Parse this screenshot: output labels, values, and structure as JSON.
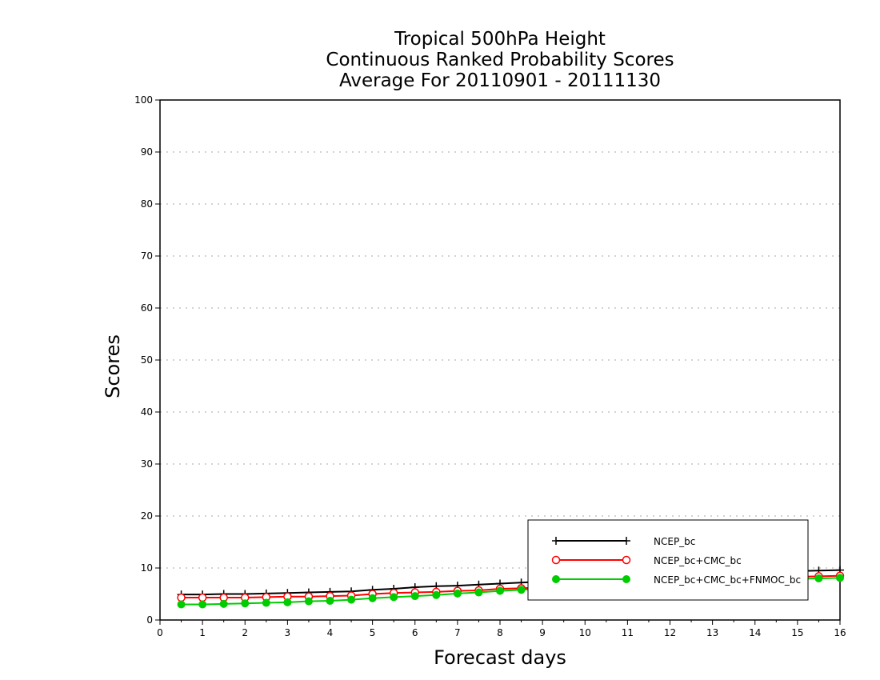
{
  "chart_data": {
    "type": "line",
    "title": [
      "Tropical 500hPa Height",
      "Continuous Ranked Probability Scores",
      "Average For 20110901 - 20111130"
    ],
    "xlabel": "Forecast days",
    "ylabel": "Scores",
    "xlim": [
      0,
      16
    ],
    "ylim": [
      0,
      100
    ],
    "xticks": [
      0,
      1,
      2,
      3,
      4,
      5,
      6,
      7,
      8,
      9,
      10,
      11,
      12,
      13,
      14,
      15,
      16
    ],
    "yticks": [
      0,
      10,
      20,
      30,
      40,
      50,
      60,
      70,
      80,
      90,
      100
    ],
    "grid": true,
    "legend_position": "bottom-right",
    "x": [
      0.5,
      1,
      1.5,
      2,
      2.5,
      3,
      3.5,
      4,
      4.5,
      5,
      5.5,
      6,
      6.5,
      7,
      7.5,
      8,
      8.5,
      9,
      9.5,
      10,
      10.5,
      11,
      11.5,
      12,
      12.5,
      13,
      13.5,
      14,
      14.5,
      15,
      15.5,
      16
    ],
    "series": [
      {
        "name": "NCEP_bc",
        "color": "#000000",
        "marker": "plus",
        "values": [
          4.9,
          4.9,
          5.0,
          5.0,
          5.1,
          5.2,
          5.3,
          5.4,
          5.5,
          5.8,
          6.0,
          6.3,
          6.5,
          6.6,
          6.8,
          7.0,
          7.2,
          7.4,
          7.6,
          7.8,
          8.0,
          8.2,
          8.4,
          8.6,
          8.8,
          9.0,
          9.1,
          9.2,
          9.3,
          9.4,
          9.5,
          9.6
        ]
      },
      {
        "name": "NCEP_bc+CMC_bc",
        "color": "#ff0000",
        "marker": "open-circle",
        "values": [
          4.3,
          4.3,
          4.3,
          4.3,
          4.4,
          4.5,
          4.5,
          4.6,
          4.7,
          5.0,
          5.2,
          5.3,
          5.4,
          5.6,
          5.7,
          6.0,
          6.1,
          6.3,
          6.5,
          6.7,
          6.9,
          7.1,
          7.3,
          7.5,
          7.7,
          7.9,
          8.0,
          8.1,
          8.2,
          8.3,
          8.4,
          8.5
        ]
      },
      {
        "name": "NCEP_bc+CMC_bc+FNMOC_bc",
        "color": "#00cc00",
        "marker": "filled-circle",
        "values": [
          3.0,
          3.0,
          3.1,
          3.2,
          3.3,
          3.4,
          3.6,
          3.7,
          3.9,
          4.2,
          4.4,
          4.6,
          4.8,
          5.1,
          5.3,
          5.6,
          5.8,
          6.0,
          6.2,
          6.4,
          6.6,
          6.8,
          7.0,
          7.2,
          7.3,
          7.5,
          7.6,
          7.7,
          7.8,
          7.9,
          8.0,
          8.1
        ]
      }
    ]
  }
}
